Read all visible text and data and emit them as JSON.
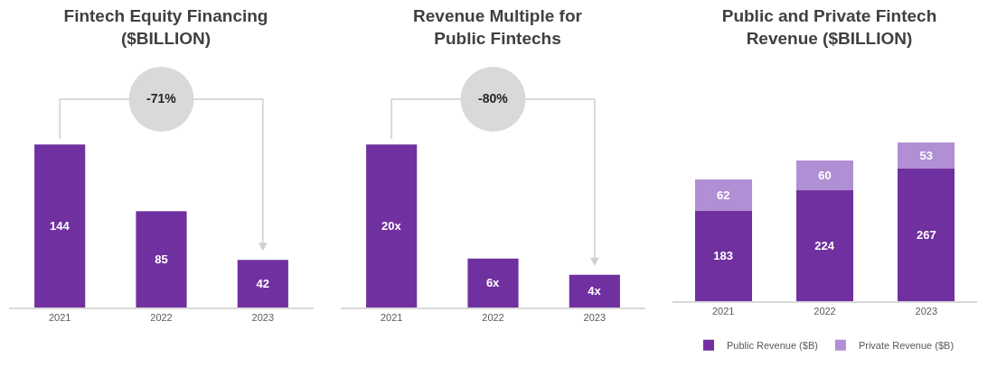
{
  "chart_data": [
    {
      "type": "bar",
      "title": "Fintech Equity Financing ($BILLION)",
      "categories": [
        "2021",
        "2022",
        "2023"
      ],
      "values": [
        144,
        85,
        42
      ],
      "color": "#7030a0",
      "data_labels": true,
      "annotations": [
        "-71%"
      ]
    },
    {
      "type": "bar",
      "title": "Revenue Multiple for Public Fintechs",
      "categories": [
        "2021",
        "2022",
        "2023"
      ],
      "values": [
        20,
        6,
        4
      ],
      "value_labels": [
        "20x",
        "6x",
        "4x"
      ],
      "color": "#7030a0",
      "annotations": [
        "-80%"
      ]
    },
    {
      "type": "bar",
      "title": "Public and Private Fintech Revenue ($BILLION)",
      "categories": [
        "2021",
        "2022",
        "2023"
      ],
      "stacked": true,
      "data_labels": true,
      "legend": "bottom",
      "series": [
        {
          "name": "Public Revenue ($B)",
          "color": "#7030a0",
          "values": [
            183,
            224,
            267
          ]
        },
        {
          "name": "Private Revenue ($B)",
          "color": "#b18fd4",
          "values": [
            62,
            60,
            53
          ]
        }
      ]
    }
  ]
}
